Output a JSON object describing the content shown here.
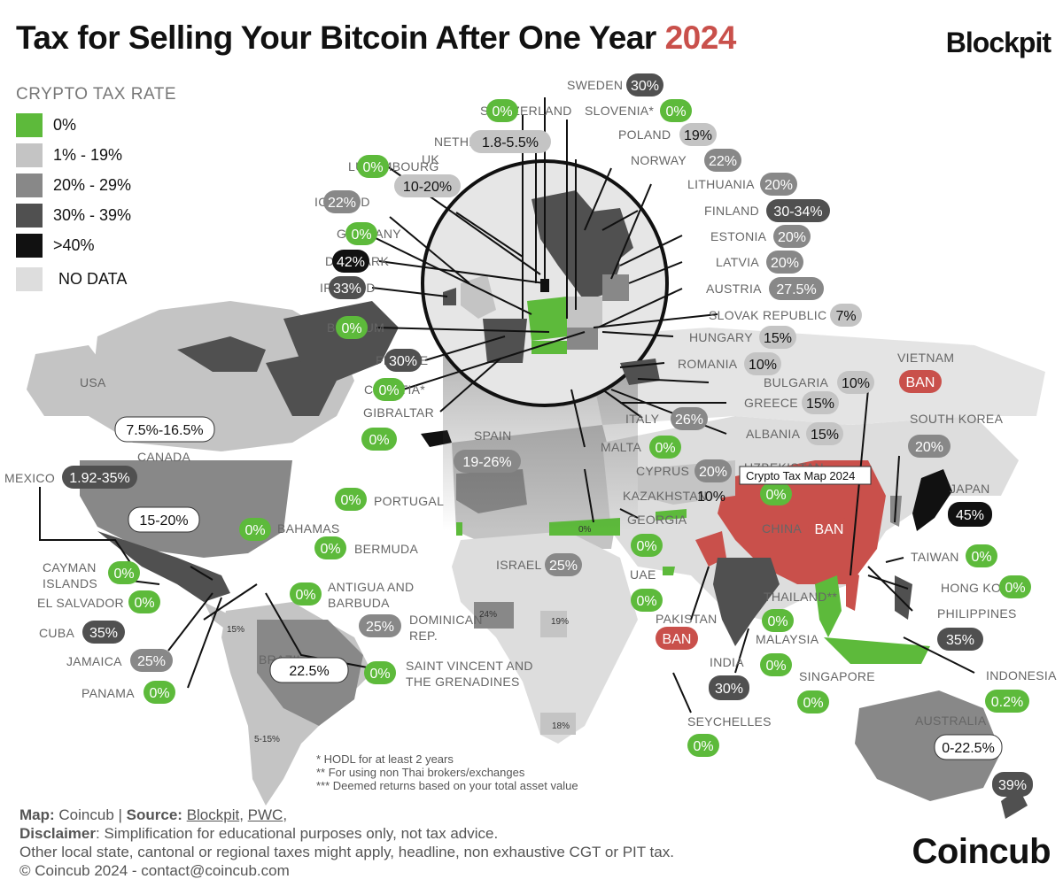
{
  "title": {
    "main": "Tax for Selling Your Bitcoin After One Year",
    "year": "2024"
  },
  "brand_top": "Blockpit",
  "brand_bottom": "Coincub",
  "legend": {
    "title": "CRYPTO TAX RATE",
    "items": [
      {
        "label": "0%",
        "color": "#5dba3b"
      },
      {
        "label": "1% - 19%",
        "color": "#c4c4c4"
      },
      {
        "label": "20% - 29%",
        "color": "#888888"
      },
      {
        "label": "30% - 39%",
        "color": "#505050"
      },
      {
        "label": ">40%",
        "color": "#111111"
      },
      {
        "label": "NO DATA",
        "color": "#dddddd"
      }
    ]
  },
  "colors": {
    "green": "#5dba3b",
    "light": "#c4c4c4",
    "mid": "#888888",
    "dark": "#505050",
    "black": "#111111",
    "nodata": "#dddddd",
    "ban": "#c9504b"
  },
  "map_labels": [
    {
      "id": "sweden",
      "name": "SWEDEN",
      "value": "30%",
      "tier": "dark"
    },
    {
      "id": "switzerland",
      "name": "SWITZERLAND",
      "value": "0%",
      "tier": "green"
    },
    {
      "id": "slovenia",
      "name": "SLOVENIA*",
      "value": "0%",
      "tier": "green"
    },
    {
      "id": "netherlands",
      "name": "NETHERLANDS***",
      "value": "1.8-5.5%",
      "tier": "light"
    },
    {
      "id": "poland",
      "name": "POLAND",
      "value": "19%",
      "tier": "light"
    },
    {
      "id": "luxembourg",
      "name": "LUXEMBOURG",
      "value": "0%",
      "tier": "green"
    },
    {
      "id": "uk",
      "name": "UK",
      "value": "10-20%",
      "tier": "light"
    },
    {
      "id": "norway",
      "name": "NORWAY",
      "value": "22%",
      "tier": "mid"
    },
    {
      "id": "lithuania",
      "name": "LITHUANIA",
      "value": "20%",
      "tier": "mid"
    },
    {
      "id": "iceland",
      "name": "ICELAND",
      "value": "22%",
      "tier": "mid"
    },
    {
      "id": "finland",
      "name": "FINLAND",
      "value": "30-34%",
      "tier": "dark"
    },
    {
      "id": "germany",
      "name": "GERMANY",
      "value": "0%",
      "tier": "green"
    },
    {
      "id": "estonia",
      "name": "ESTONIA",
      "value": "20%",
      "tier": "mid"
    },
    {
      "id": "denmark",
      "name": "DENMARK",
      "value": "42%",
      "tier": "black"
    },
    {
      "id": "latvia",
      "name": "LATVIA",
      "value": "20%",
      "tier": "mid"
    },
    {
      "id": "ireland",
      "name": "IRELAND",
      "value": "33%",
      "tier": "dark"
    },
    {
      "id": "austria",
      "name": "AUSTRIA",
      "value": "27.5%",
      "tier": "mid"
    },
    {
      "id": "slovak",
      "name": "SLOVAK REPUBLIC",
      "value": "7%",
      "tier": "light"
    },
    {
      "id": "belgium",
      "name": "BELGIUM",
      "value": "0%",
      "tier": "green"
    },
    {
      "id": "hungary",
      "name": "HUNGARY",
      "value": "15%",
      "tier": "light"
    },
    {
      "id": "france",
      "name": "FRANCE",
      "value": "30%",
      "tier": "dark"
    },
    {
      "id": "romania",
      "name": "ROMANIA",
      "value": "10%",
      "tier": "light"
    },
    {
      "id": "croatia",
      "name": "CROATIA*",
      "value": "0%",
      "tier": "green"
    },
    {
      "id": "bulgaria",
      "name": "BULGARIA",
      "value": "10%",
      "tier": "light"
    },
    {
      "id": "gibraltar",
      "name": "GIBRALTAR",
      "value": "0%",
      "tier": "green"
    },
    {
      "id": "greece",
      "name": "GREECE",
      "value": "15%",
      "tier": "light"
    },
    {
      "id": "italy",
      "name": "ITALY",
      "value": "26%",
      "tier": "mid"
    },
    {
      "id": "albania",
      "name": "ALBANIA",
      "value": "15%",
      "tier": "light"
    },
    {
      "id": "spain",
      "name": "SPAIN",
      "value": "19-26%",
      "tier": "mid"
    },
    {
      "id": "malta",
      "name": "MALTA",
      "value": "0%",
      "tier": "green"
    },
    {
      "id": "cyprus",
      "name": "CYPRUS",
      "value": "20%",
      "tier": "mid"
    },
    {
      "id": "kazakhstan",
      "name": "KAZAKHSTAN",
      "value": "10%",
      "tier": "light"
    },
    {
      "id": "portugal",
      "name": "PORTUGAL",
      "value": "0%",
      "tier": "green"
    },
    {
      "id": "georgia",
      "name": "GEORGIA",
      "value": "0%",
      "tier": "green"
    },
    {
      "id": "israel",
      "name": "ISRAEL",
      "value": "25%",
      "tier": "mid"
    },
    {
      "id": "uae",
      "name": "UAE",
      "value": "0%",
      "tier": "green"
    },
    {
      "id": "usa",
      "name": "USA",
      "value": "15-20%",
      "tier": "white"
    },
    {
      "id": "canada",
      "name": "CANADA",
      "value": "7.5%-16.5%",
      "tier": "white"
    },
    {
      "id": "mexico",
      "name": "MEXICO",
      "value": "1.92-35%",
      "tier": "dark"
    },
    {
      "id": "bahamas",
      "name": "BAHAMAS",
      "value": "0%",
      "tier": "green"
    },
    {
      "id": "bermuda",
      "name": "BERMUDA",
      "value": "0%",
      "tier": "green"
    },
    {
      "id": "cayman",
      "name": "CAYMAN ISLANDS",
      "value": "0%",
      "tier": "green"
    },
    {
      "id": "antigua",
      "name": "ANTIGUA AND BARBUDA",
      "value": "0%",
      "tier": "green"
    },
    {
      "id": "elsalvador",
      "name": "EL SALVADOR",
      "value": "0%",
      "tier": "green"
    },
    {
      "id": "dominican",
      "name": "DOMINICAN REP.",
      "value": "25%",
      "tier": "mid"
    },
    {
      "id": "cuba",
      "name": "CUBA",
      "value": "35%",
      "tier": "dark"
    },
    {
      "id": "brazil",
      "name": "BRAZIL",
      "value": "22.5%",
      "tier": "white"
    },
    {
      "id": "jamaica",
      "name": "JAMAICA",
      "value": "25%",
      "tier": "mid"
    },
    {
      "id": "stvincent",
      "name": "SAINT VINCENT AND THE GRENADINES",
      "value": "0%",
      "tier": "green"
    },
    {
      "id": "panama",
      "name": "PANAMA",
      "value": "0%",
      "tier": "green"
    },
    {
      "id": "vietnam",
      "name": "VIETNAM",
      "value": "BAN",
      "tier": "ban"
    },
    {
      "id": "southkorea",
      "name": "SOUTH KOREA",
      "value": "20%",
      "tier": "mid"
    },
    {
      "id": "uzbekistan",
      "name": "UZBEKISTAN",
      "value": "0%",
      "tier": "green"
    },
    {
      "id": "japan",
      "name": "JAPAN",
      "value": "45%",
      "tier": "black"
    },
    {
      "id": "china",
      "name": "CHINA",
      "value": "BAN",
      "tier": "ban"
    },
    {
      "id": "taiwan",
      "name": "TAIWAN",
      "value": "0%",
      "tier": "green"
    },
    {
      "id": "india",
      "name": "INDIA",
      "value": "30%",
      "tier": "dark"
    },
    {
      "id": "hongkong",
      "name": "HONG KONG",
      "value": "0%",
      "tier": "green"
    },
    {
      "id": "thailand",
      "name": "THAILAND**",
      "value": "0%",
      "tier": "green"
    },
    {
      "id": "philippines",
      "name": "PHILIPPINES",
      "value": "35%",
      "tier": "dark"
    },
    {
      "id": "pakistan",
      "name": "PAKISTAN",
      "value": "BAN",
      "tier": "ban"
    },
    {
      "id": "malaysia",
      "name": "MALAYSIA",
      "value": "0%",
      "tier": "green"
    },
    {
      "id": "singapore",
      "name": "SINGAPORE",
      "value": "0%",
      "tier": "green"
    },
    {
      "id": "indonesia",
      "name": "INDONESIA",
      "value": "0.2%",
      "tier": "green"
    },
    {
      "id": "seychelles",
      "name": "SEYCHELLES",
      "value": "0%",
      "tier": "green"
    },
    {
      "id": "australia",
      "name": "AUSTRALIA",
      "value": "0-22.5%",
      "tier": "white"
    },
    {
      "id": "newzealand",
      "name": "",
      "value": "39%",
      "tier": "dark"
    }
  ],
  "inline_values": {
    "colombia": "15%",
    "argentina": "5-15%",
    "nigeria": "24%",
    "kenya": "19%",
    "southafrica": "18%",
    "turkey": "0%"
  },
  "tooltip": "Crypto Tax Map 2024",
  "notes": [
    "* HODL for at least 2 years",
    "** For using non Thai brokers/exchanges",
    "*** Deemed returns based on your total asset value"
  ],
  "footer": {
    "map_label": "Map:",
    "map_value": "Coincub",
    "source_label": "Source:",
    "source_1": "Blockpit",
    "source_2": "PWC",
    "disclaimer_label": "Disclaimer",
    "disclaimer": ": Simplification for educational purposes only, not tax advice.",
    "line3": "Other local state, cantonal or regional taxes might apply, headline, non exhaustive CGT or PIT tax.",
    "line4": "© Coincub 2024 - contact@coincub.com"
  }
}
